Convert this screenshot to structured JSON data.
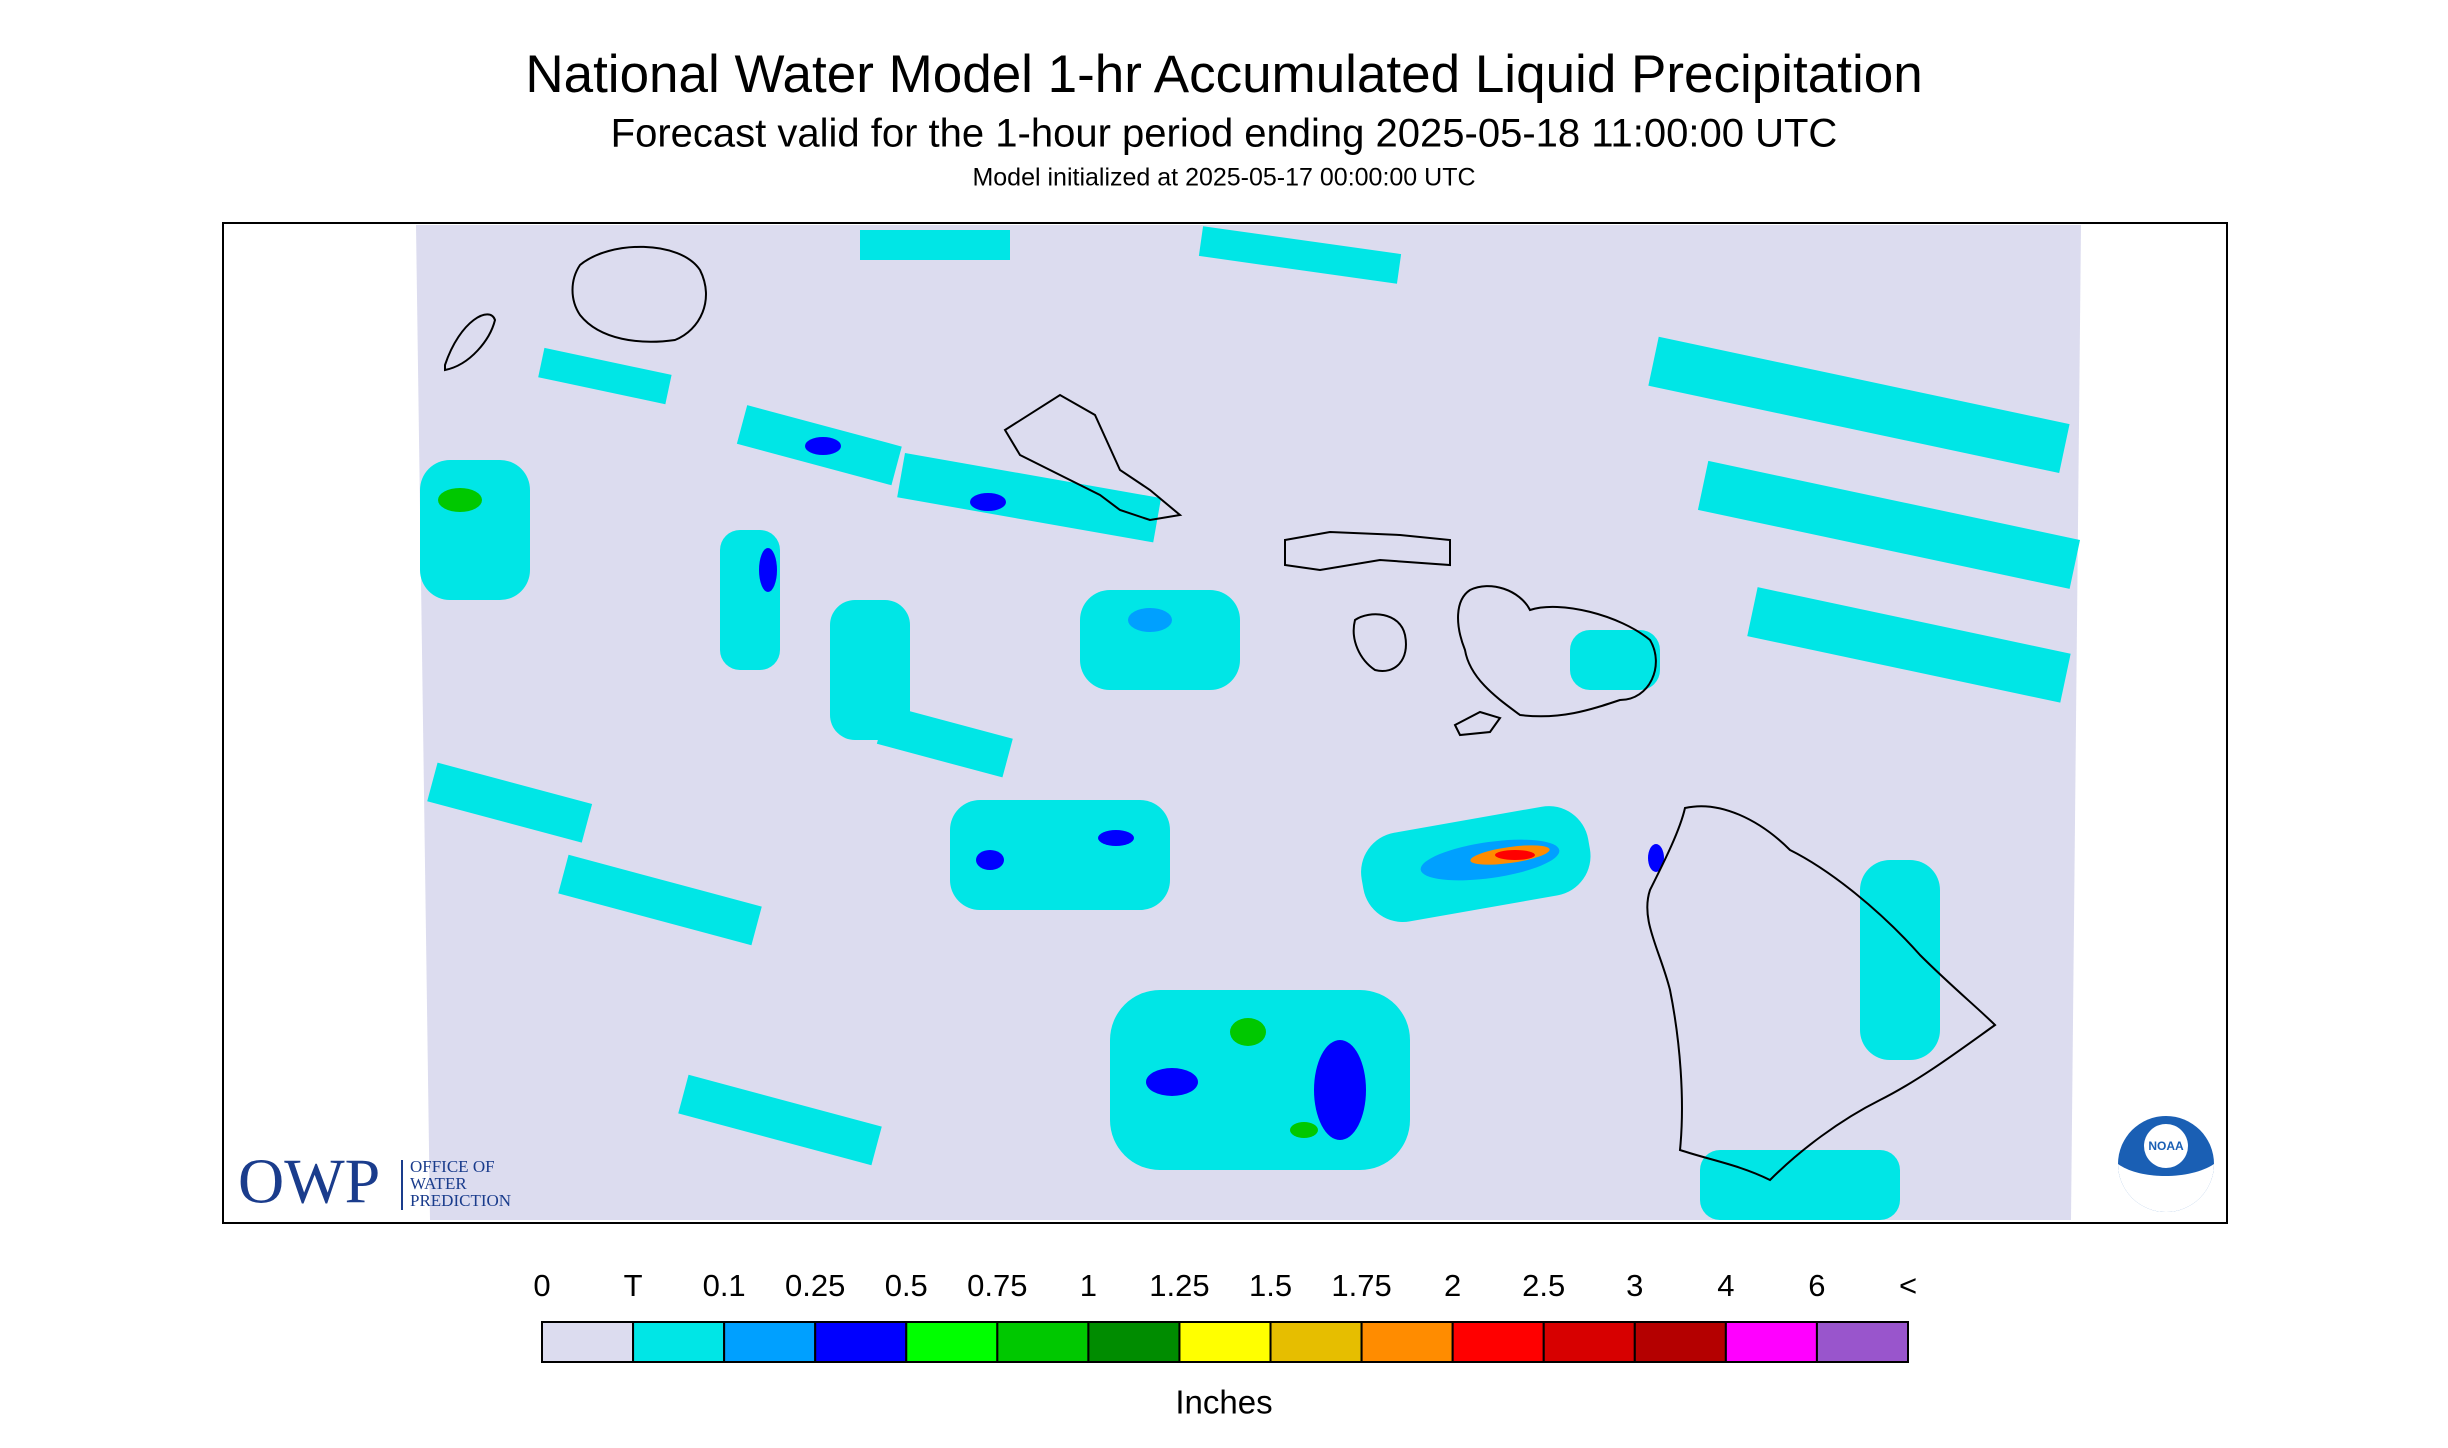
{
  "header": {
    "title": "National Water Model 1-hr Accumulated Liquid Precipitation",
    "subtitle": "Forecast valid for the 1-hour period ending 2025-05-18 11:00:00 UTC",
    "initialized": "Model initialized at 2025-05-17 00:00:00 UTC"
  },
  "legend": {
    "labels": [
      "0",
      "T",
      "0.1",
      "0.25",
      "0.5",
      "0.75",
      "1",
      "1.25",
      "1.5",
      "1.75",
      "2",
      "2.5",
      "3",
      "4",
      "6",
      "<"
    ],
    "colors": [
      "#dcdcef",
      "#00e6e6",
      "#00a0ff",
      "#0000ff",
      "#00ff00",
      "#00c800",
      "#008c00",
      "#ffff00",
      "#e6be00",
      "#ff8c00",
      "#ff0000",
      "#d70000",
      "#b40000",
      "#ff00ff",
      "#9955cc"
    ],
    "unit": "Inches"
  },
  "logo": {
    "acronym": "OWP",
    "name": [
      "OFFICE OF",
      "WATER",
      "PREDICTION"
    ]
  },
  "badge": "NOAA"
}
